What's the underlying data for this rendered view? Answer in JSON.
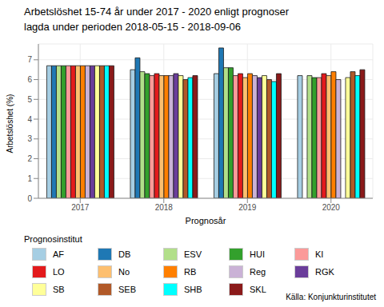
{
  "chart_data": {
    "type": "bar",
    "title": "Arbetslöshet 15-74 år under 2017 - 2020 enligt prognoser",
    "subtitle": "lagda under perioden 2018-05-15 - 2018-09-06",
    "x_label": "Prognosår",
    "y_label": "Arbetslöshet (%)",
    "legend_title": "Prognosinstitut",
    "source": "Källa: Konjunkturinstitutet",
    "categories": [
      "2017",
      "2018",
      "2019",
      "2020"
    ],
    "ylim": [
      0,
      7.8
    ],
    "yticks": [
      0,
      1,
      2,
      3,
      4,
      5,
      6,
      7
    ],
    "grid": true,
    "legend": "bottom",
    "series": [
      {
        "name": "AF",
        "color": "#a6cee3",
        "values": [
          6.7,
          6.5,
          6.3,
          6.2
        ]
      },
      {
        "name": "DB",
        "color": "#1f78b4",
        "values": [
          6.7,
          7.1,
          7.6,
          null
        ]
      },
      {
        "name": "ESV",
        "color": "#b2df8a",
        "values": [
          6.7,
          6.4,
          6.6,
          6.2
        ]
      },
      {
        "name": "HUI",
        "color": "#33a02c",
        "values": [
          6.7,
          6.3,
          6.6,
          6.1
        ]
      },
      {
        "name": "KI",
        "color": "#fb9a99",
        "values": [
          6.7,
          6.2,
          6.2,
          6.1
        ]
      },
      {
        "name": "LO",
        "color": "#e31a1c",
        "values": [
          6.7,
          6.3,
          6.3,
          6.3
        ]
      },
      {
        "name": "No",
        "color": "#fdbf6f",
        "values": [
          6.7,
          6.2,
          6.1,
          6.2
        ]
      },
      {
        "name": "RB",
        "color": "#ff7f00",
        "values": [
          6.7,
          6.2,
          6.3,
          6.4
        ]
      },
      {
        "name": "Reg",
        "color": "#cab2d6",
        "values": [
          6.7,
          6.2,
          6.2,
          6.0
        ]
      },
      {
        "name": "RGK",
        "color": "#6a3d9a",
        "values": [
          6.7,
          6.3,
          6.1,
          null
        ]
      },
      {
        "name": "SB",
        "color": "#ffff99",
        "values": [
          6.7,
          6.2,
          6.2,
          6.1
        ]
      },
      {
        "name": "SEB",
        "color": "#b15928",
        "values": [
          6.7,
          6.0,
          6.0,
          6.4
        ]
      },
      {
        "name": "SHB",
        "color": "#00ffff",
        "values": [
          6.7,
          6.1,
          5.9,
          6.2
        ]
      },
      {
        "name": "SKL",
        "color": "#8b1a1a",
        "values": [
          6.7,
          6.2,
          6.3,
          6.5
        ]
      }
    ]
  }
}
